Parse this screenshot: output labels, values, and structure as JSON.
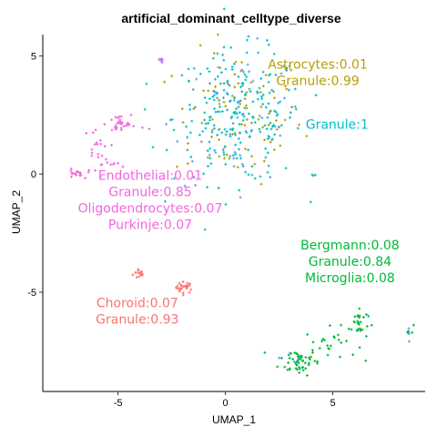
{
  "chart_data": {
    "type": "scatter",
    "title": "artificial_dominant_celltype_diverse",
    "xlabel": "UMAP_1",
    "ylabel": "UMAP_2",
    "xlim": [
      -8.5,
      9.3
    ],
    "ylim": [
      -9.2,
      5.9
    ],
    "x_ticks": [
      -5,
      0,
      5
    ],
    "y_ticks": [
      -5,
      0,
      5
    ],
    "grid": false,
    "legend": "none",
    "series": [
      {
        "color": "#F8766D",
        "clusters": [
          {
            "cx": -4.0,
            "cy": -4.2,
            "sx": 0.15,
            "sy": 0.12,
            "n": 14
          },
          {
            "cx": -1.9,
            "cy": -4.8,
            "sx": 0.2,
            "sy": 0.12,
            "n": 26
          }
        ]
      },
      {
        "color": "#B79F00",
        "clusters": [
          {
            "cx": 0.6,
            "cy": 2.4,
            "sx": 1.5,
            "sy": 1.4,
            "n": 90
          }
        ]
      },
      {
        "color": "#00BA38",
        "clusters": [
          {
            "cx": 3.4,
            "cy": -7.9,
            "sx": 0.45,
            "sy": 0.3,
            "n": 50
          },
          {
            "cx": 4.9,
            "cy": -7.2,
            "sx": 0.6,
            "sy": 0.35,
            "n": 26
          },
          {
            "cx": 6.2,
            "cy": -6.3,
            "sx": 0.22,
            "sy": 0.35,
            "n": 30
          },
          {
            "cx": 8.6,
            "cy": -6.6,
            "sx": 0.08,
            "sy": 0.12,
            "n": 6
          }
        ]
      },
      {
        "color": "#00BFC4",
        "clusters": [
          {
            "cx": 0.6,
            "cy": 2.4,
            "sx": 1.5,
            "sy": 1.4,
            "n": 230
          },
          {
            "cx": 4.1,
            "cy": 0.0,
            "sx": 0.06,
            "sy": 0.05,
            "n": 3
          }
        ]
      },
      {
        "color": "#619CFF",
        "clusters": [
          {
            "cx": 0.6,
            "cy": 2.4,
            "sx": 1.5,
            "sy": 1.4,
            "n": 45
          },
          {
            "cx": -3.0,
            "cy": 4.8,
            "sx": 0.05,
            "sy": 0.05,
            "n": 2
          },
          {
            "cx": 8.6,
            "cy": -6.6,
            "sx": 0.08,
            "sy": 0.12,
            "n": 3
          },
          {
            "cx": 3.2,
            "cy": -7.8,
            "sx": 0.3,
            "sy": 0.25,
            "n": 5
          }
        ]
      },
      {
        "color": "#F564E3",
        "clusters": [
          {
            "cx": -7.0,
            "cy": 0.0,
            "sx": 0.2,
            "sy": 0.1,
            "n": 18
          },
          {
            "cx": -6.0,
            "cy": 1.0,
            "sx": 0.3,
            "sy": 0.5,
            "n": 22
          },
          {
            "cx": -5.0,
            "cy": 2.1,
            "sx": 0.3,
            "sy": 0.2,
            "n": 22
          },
          {
            "cx": -4.3,
            "cy": 2.0,
            "sx": 0.4,
            "sy": 0.1,
            "n": 8
          },
          {
            "cx": -3.0,
            "cy": 4.8,
            "sx": 0.05,
            "sy": 0.05,
            "n": 4
          },
          {
            "cx": -5.2,
            "cy": 0.4,
            "sx": 0.6,
            "sy": 0.05,
            "n": 6
          }
        ]
      }
    ],
    "annotations": [
      {
        "lines": [
          "Astrocytes:0.01",
          "Granule:0.99"
        ],
        "x": 4.3,
        "y": 4.3,
        "color": "#B79F00"
      },
      {
        "lines": [
          "Granule:1"
        ],
        "x": 5.2,
        "y": 2.1,
        "color": "#00BFC4"
      },
      {
        "lines": [
          "Endothelial:0.01",
          "Granule:0.85",
          "Oligodendrocytes:0.07",
          "Purkinje:0.07"
        ],
        "x": -3.5,
        "y": -1.1,
        "color": "#F564E3"
      },
      {
        "lines": [
          "Bergmann:0.08",
          "Granule:0.84",
          "Microglia:0.08"
        ],
        "x": 5.8,
        "y": -3.7,
        "color": "#00BA38"
      },
      {
        "lines": [
          "Choroid:0.07",
          "Granule:0.93"
        ],
        "x": -4.1,
        "y": -5.8,
        "color": "#F8766D"
      }
    ]
  }
}
